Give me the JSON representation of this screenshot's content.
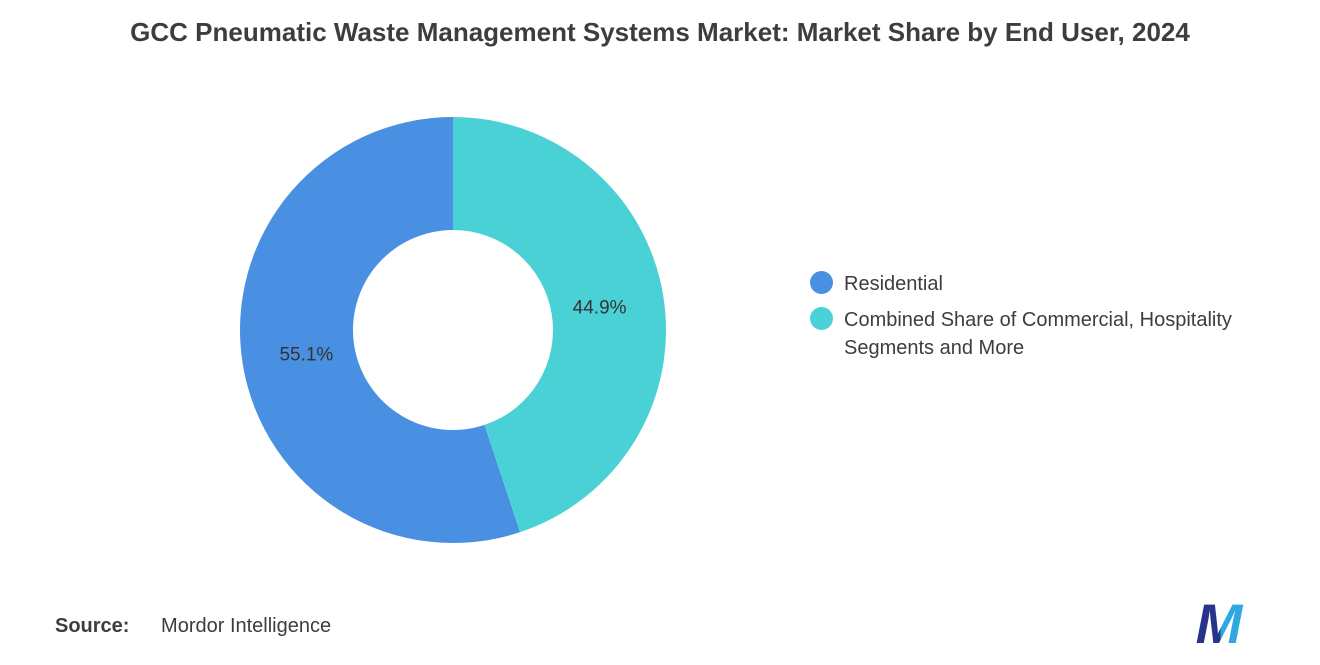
{
  "title": "GCC Pneumatic Waste Management Systems Market: Market Share by End User, 2024",
  "chart_data": {
    "type": "pie",
    "subtype": "donut",
    "title": "GCC Pneumatic Waste Management Systems Market: Market Share by End User, 2024",
    "start_angle_deg": 0,
    "direction": "counterclockwise",
    "inner_radius_ratio": 0.47,
    "legend_position": "right",
    "series": [
      {
        "name": "Residential",
        "value": 55.1,
        "label": "55.1%",
        "color": "#4a90e2"
      },
      {
        "name": "Combined Share of Commercial, Hospitality Segments and More",
        "value": 44.9,
        "label": "44.9%",
        "color": "#4ad1d6"
      }
    ]
  },
  "footer": {
    "source_label": "Source:",
    "source_value": "Mordor Intelligence"
  },
  "logo": {
    "name": "mordor-intelligence-logo",
    "letter": "M",
    "dark_color": "#27348b",
    "light_color": "#2fa8e1"
  }
}
